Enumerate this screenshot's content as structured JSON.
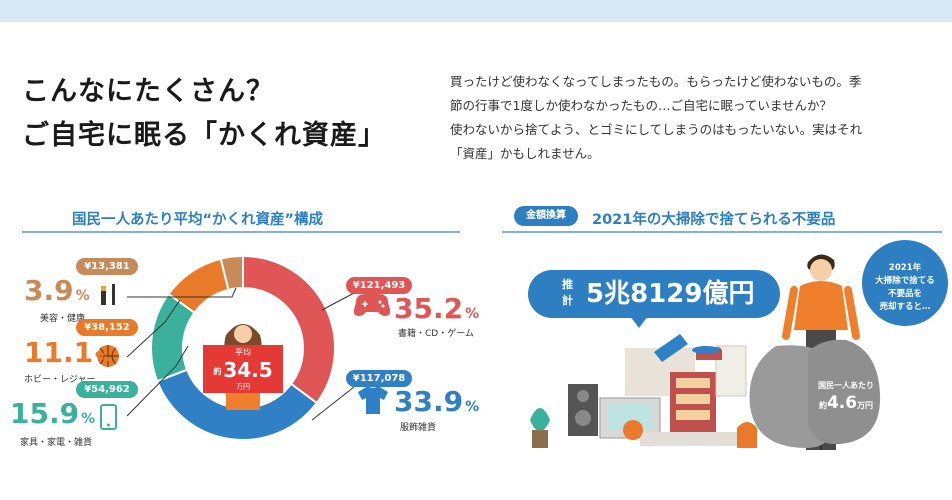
{
  "headline": {
    "line1": "こんなにたくさん？",
    "line2": "ご自宅に眠る「かくれ資産」"
  },
  "intro": {
    "line1": "買ったけど使わなくなってしまったもの。もらったけど使わないもの。季",
    "line2": "節の行事で1度しか使わなかったもの…ご自宅に眠っていませんか？",
    "line3": "使わないから捨てよう、とゴミにしてしまうのはもったいない。実はそれ",
    "line4": "「資産」かもしれません。"
  },
  "left_section": {
    "title": "国民一人あたり平均“かくれ資産”構成"
  },
  "center": {
    "caption": "平均",
    "prefix": "約",
    "value": "34.5",
    "unit": "万円"
  },
  "colors": {
    "books": "#e05555",
    "clothes": "#2f80c4",
    "home": "#3bb19c",
    "hobby": "#e97a2a",
    "beauty": "#c98a5a",
    "accent": "#2d7fc1"
  },
  "chart_data": {
    "type": "pie",
    "categories": [
      "書籍・CD・ゲーム",
      "服飾雑貨",
      "家具・家電・雑貨",
      "ホビー・レジャー",
      "美容・健康"
    ],
    "values": [
      35.2,
      33.9,
      15.9,
      11.1,
      3.9
    ],
    "amounts": [
      "¥121,493",
      "¥117,078",
      "¥54,962",
      "¥38,152",
      "¥13,381"
    ],
    "percent_labels": [
      "35.2",
      "33.9",
      "15.9",
      "11.1",
      "3.9"
    ],
    "percent_unit": "%",
    "icons": [
      "game-controller-icon",
      "t-shirt-icon",
      "smartphone-icon",
      "basketball-icon",
      "cosmetics-icon"
    ]
  },
  "right_section": {
    "tag": "金額換算",
    "title": "2021年の大掃除で捨てられる不要品",
    "bubble_prefix": "推計",
    "bubble_amount": "5兆8129億円",
    "circle_note": [
      "2021年",
      "大掃除で捨てる",
      "不要品を",
      "売却すると…"
    ],
    "bag_caption": "国民一人あたり",
    "bag_prefix": "約",
    "bag_amount": "4.6",
    "bag_unit": "万円"
  }
}
